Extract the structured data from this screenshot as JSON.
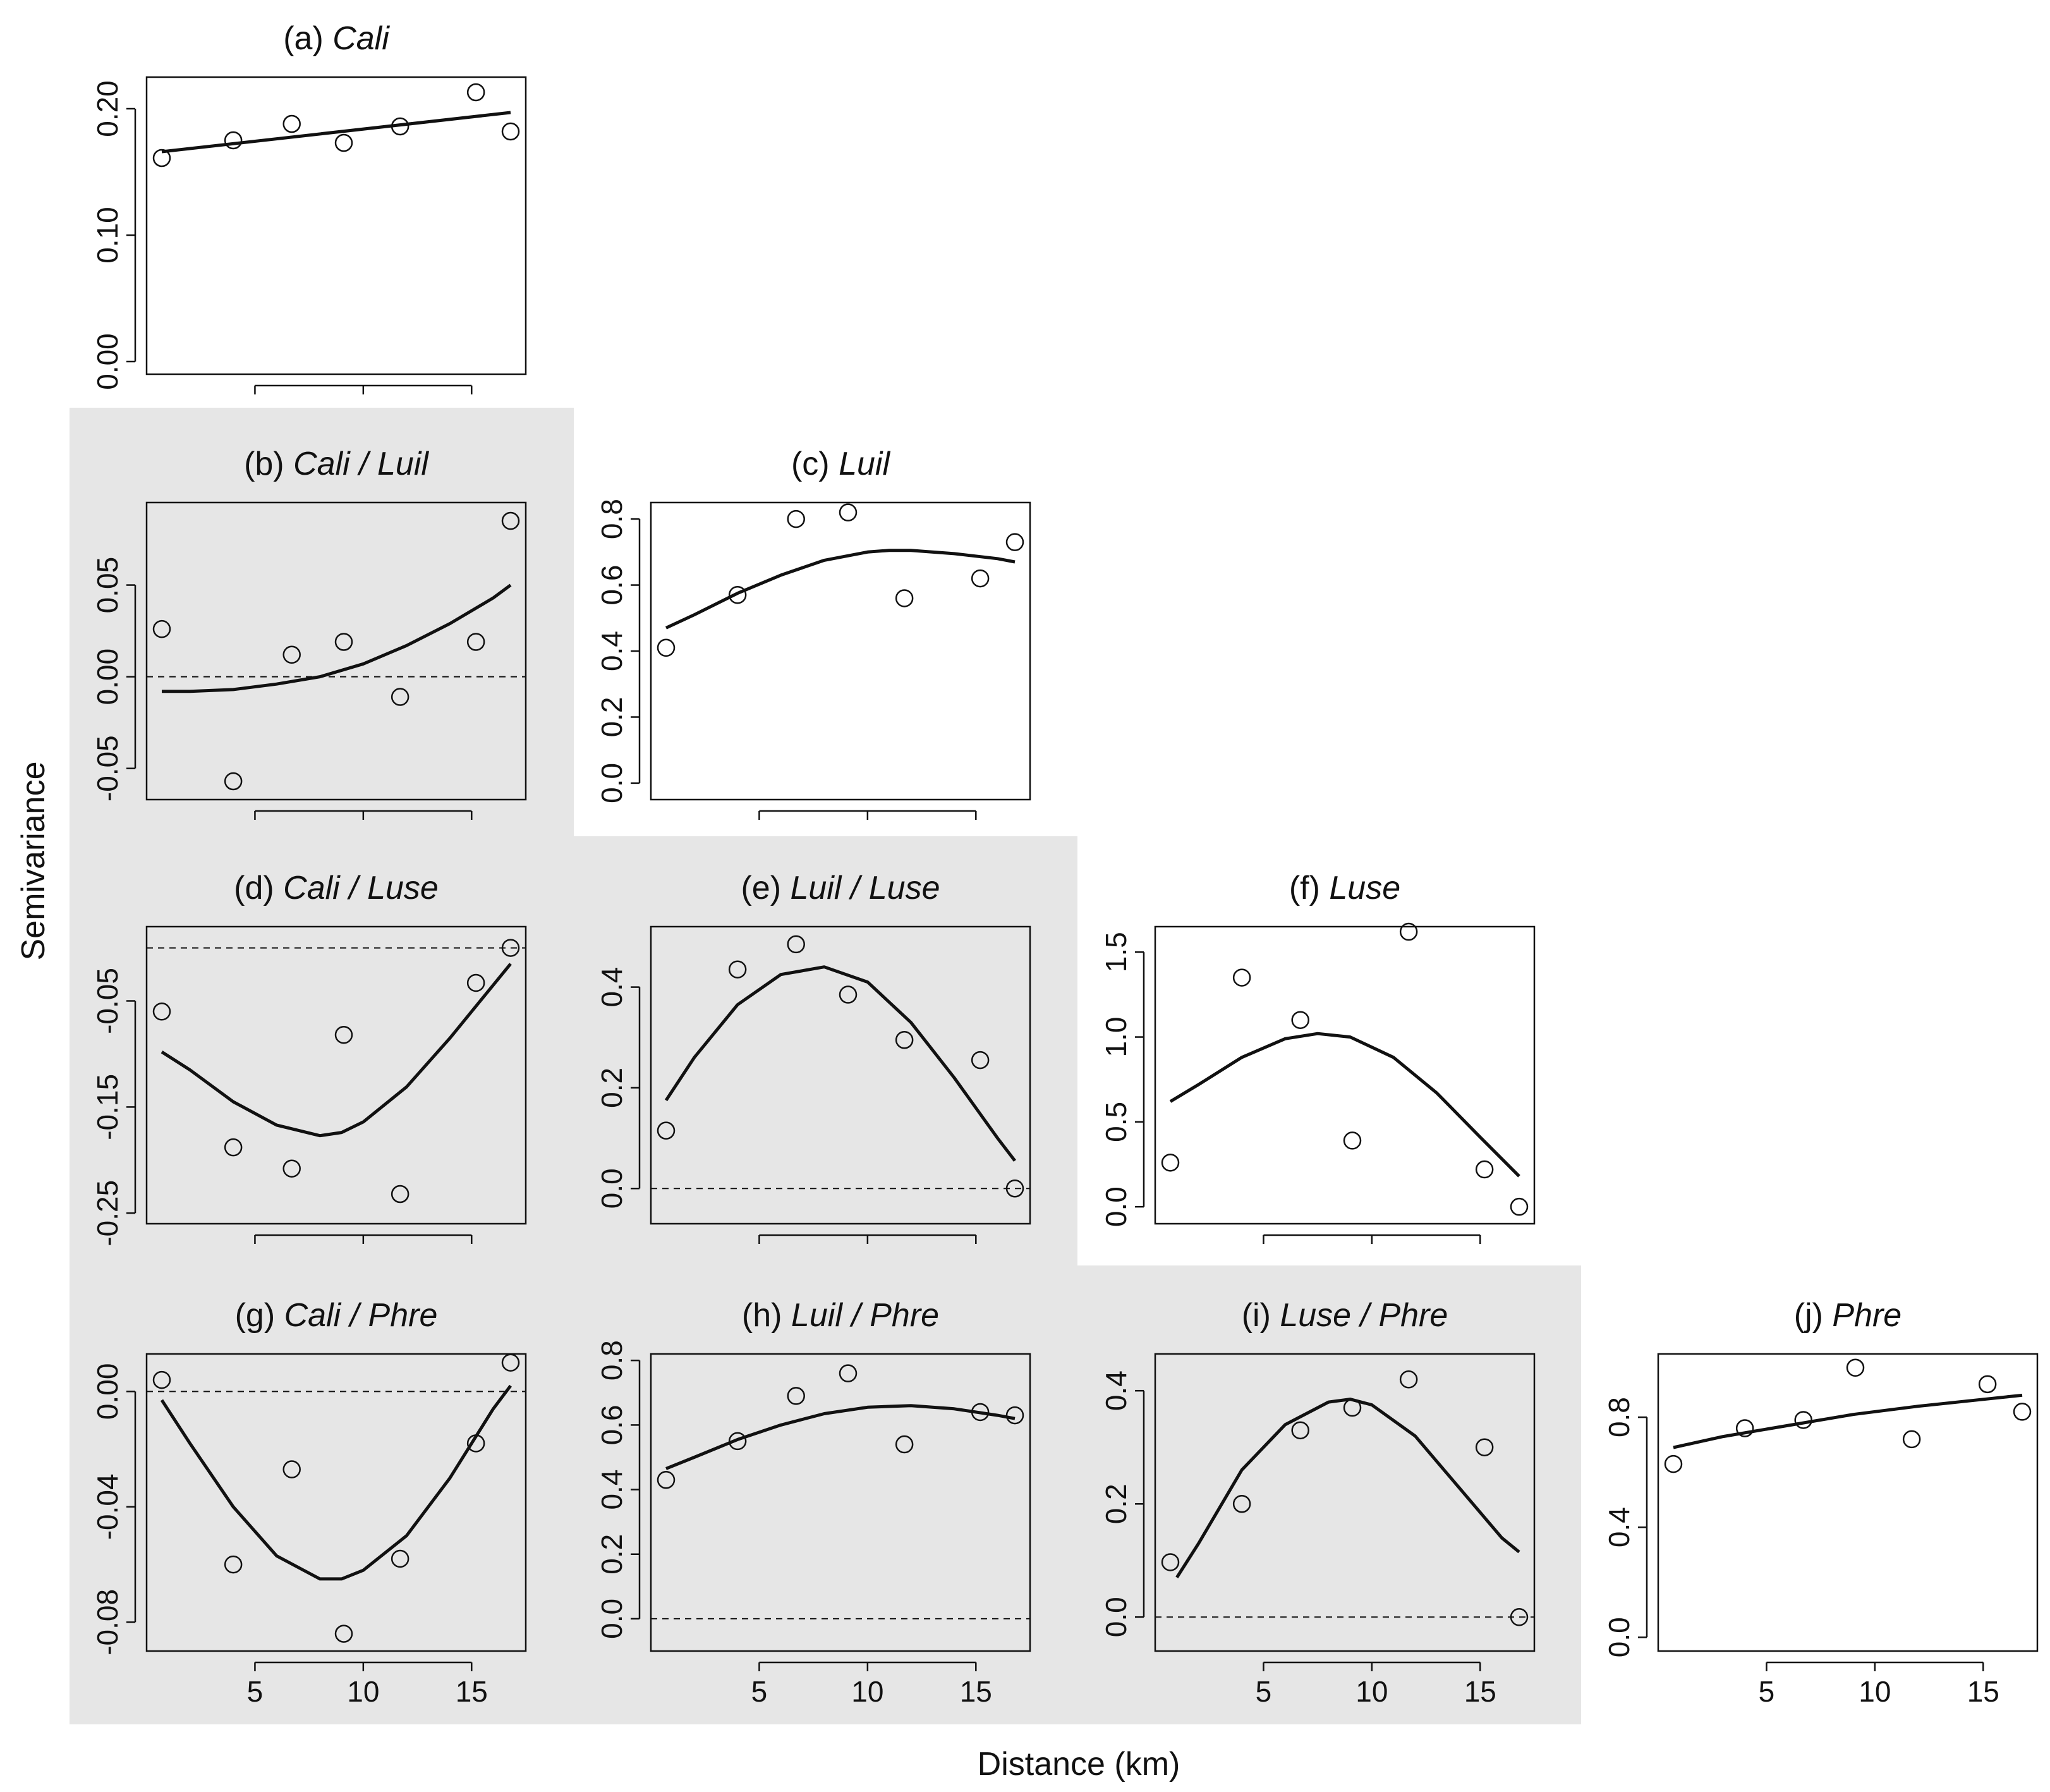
{
  "figure": {
    "ylabel": "Semivariance",
    "xlabel": "Distance (km)",
    "colors": {
      "shade": "#e6e6e6",
      "ink": "#111111"
    }
  },
  "chart_data": [
    {
      "id": "a",
      "type": "scatter",
      "title_prefix": "(a) ",
      "title_italic": "Cali",
      "shaded": false,
      "row": 0,
      "col": 0,
      "x": [
        0.7,
        4.0,
        6.7,
        9.1,
        11.7,
        15.2,
        16.8
      ],
      "y": [
        0.161,
        0.175,
        0.188,
        0.173,
        0.186,
        0.213,
        0.182
      ],
      "fit": [
        [
          0.7,
          0.166
        ],
        [
          16.8,
          0.197
        ]
      ],
      "xlim": [
        0,
        17.5
      ],
      "ylim": [
        -0.01,
        0.225
      ],
      "yticks": [
        "0.00",
        "0.10",
        "0.20"
      ],
      "ytick_values": [
        0.0,
        0.1,
        0.2
      ],
      "xticks": [
        "5",
        "10",
        "15"
      ],
      "xtick_values": [
        5,
        10,
        15
      ],
      "show_xticklabels": false,
      "zero_line": false
    },
    {
      "id": "b",
      "type": "scatter",
      "title_prefix": "(b) ",
      "title_italic": "Cali / Luil",
      "shaded": true,
      "row": 1,
      "col": 0,
      "x": [
        0.7,
        4.0,
        6.7,
        9.1,
        11.7,
        15.2,
        16.8
      ],
      "y": [
        0.026,
        -0.057,
        0.012,
        0.019,
        -0.011,
        0.019,
        0.085
      ],
      "fit": [
        [
          0.7,
          -0.008
        ],
        [
          2,
          -0.008
        ],
        [
          4,
          -0.007
        ],
        [
          6,
          -0.004
        ],
        [
          8,
          0.0
        ],
        [
          10,
          0.007
        ],
        [
          12,
          0.017
        ],
        [
          14,
          0.029
        ],
        [
          16,
          0.043
        ],
        [
          16.8,
          0.05
        ]
      ],
      "xlim": [
        0,
        17.5
      ],
      "ylim": [
        -0.067,
        0.095
      ],
      "yticks": [
        "-0.05",
        "0.00",
        "0.05"
      ],
      "ytick_values": [
        -0.05,
        0.0,
        0.05
      ],
      "xticks": [
        "5",
        "10",
        "15"
      ],
      "xtick_values": [
        5,
        10,
        15
      ],
      "show_xticklabels": false,
      "zero_line": true
    },
    {
      "id": "c",
      "type": "scatter",
      "title_prefix": "(c) ",
      "title_italic": "Luil",
      "shaded": false,
      "row": 1,
      "col": 1,
      "x": [
        0.7,
        4.0,
        6.7,
        9.1,
        11.7,
        15.2,
        16.8
      ],
      "y": [
        0.41,
        0.57,
        0.8,
        0.82,
        0.56,
        0.62,
        0.73
      ],
      "fit": [
        [
          0.7,
          0.47
        ],
        [
          2,
          0.51
        ],
        [
          4,
          0.575
        ],
        [
          6,
          0.63
        ],
        [
          8,
          0.675
        ],
        [
          10,
          0.7
        ],
        [
          11,
          0.705
        ],
        [
          12,
          0.705
        ],
        [
          14,
          0.695
        ],
        [
          16,
          0.68
        ],
        [
          16.8,
          0.67
        ]
      ],
      "xlim": [
        0,
        17.5
      ],
      "ylim": [
        -0.05,
        0.85
      ],
      "yticks": [
        "0.0",
        "0.2",
        "0.4",
        "0.6",
        "0.8"
      ],
      "ytick_values": [
        0.0,
        0.2,
        0.4,
        0.6,
        0.8
      ],
      "xticks": [
        "5",
        "10",
        "15"
      ],
      "xtick_values": [
        5,
        10,
        15
      ],
      "show_xticklabels": false,
      "zero_line": false
    },
    {
      "id": "d",
      "type": "scatter",
      "title_prefix": "(d) ",
      "title_italic": "Cali / Luse",
      "shaded": true,
      "row": 2,
      "col": 0,
      "x": [
        0.7,
        4.0,
        6.7,
        9.1,
        11.7,
        15.2,
        16.8
      ],
      "y": [
        -0.06,
        -0.188,
        -0.208,
        -0.082,
        -0.232,
        -0.033,
        0.0
      ],
      "fit": [
        [
          0.7,
          -0.098
        ],
        [
          2,
          -0.115
        ],
        [
          4,
          -0.145
        ],
        [
          6,
          -0.167
        ],
        [
          8,
          -0.177
        ],
        [
          9,
          -0.174
        ],
        [
          10,
          -0.164
        ],
        [
          12,
          -0.131
        ],
        [
          14,
          -0.085
        ],
        [
          16,
          -0.035
        ],
        [
          16.8,
          -0.015
        ]
      ],
      "xlim": [
        0,
        17.5
      ],
      "ylim": [
        -0.26,
        0.02
      ],
      "yticks": [
        "-0.25",
        "-0.15",
        "-0.05"
      ],
      "ytick_values": [
        -0.25,
        -0.15,
        -0.05
      ],
      "xticks": [
        "5",
        "10",
        "15"
      ],
      "xtick_values": [
        5,
        10,
        15
      ],
      "show_xticklabels": false,
      "zero_line": true
    },
    {
      "id": "e",
      "type": "scatter",
      "title_prefix": "(e) ",
      "title_italic": "Luil / Luse",
      "shaded": true,
      "row": 2,
      "col": 1,
      "x": [
        0.7,
        4.0,
        6.7,
        9.1,
        11.7,
        15.2,
        16.8
      ],
      "y": [
        0.115,
        0.435,
        0.485,
        0.385,
        0.295,
        0.255,
        0.0
      ],
      "fit": [
        [
          0.7,
          0.175
        ],
        [
          2,
          0.26
        ],
        [
          4,
          0.365
        ],
        [
          6,
          0.425
        ],
        [
          8,
          0.44
        ],
        [
          10,
          0.41
        ],
        [
          12,
          0.33
        ],
        [
          14,
          0.22
        ],
        [
          16,
          0.1
        ],
        [
          16.8,
          0.055
        ]
      ],
      "xlim": [
        0,
        17.5
      ],
      "ylim": [
        -0.07,
        0.52
      ],
      "yticks": [
        "0.0",
        "0.2",
        "0.4"
      ],
      "ytick_values": [
        0.0,
        0.2,
        0.4
      ],
      "xticks": [
        "5",
        "10",
        "15"
      ],
      "xtick_values": [
        5,
        10,
        15
      ],
      "show_xticklabels": false,
      "zero_line": true
    },
    {
      "id": "f",
      "type": "scatter",
      "title_prefix": "(f) ",
      "title_italic": "Luse",
      "shaded": false,
      "row": 2,
      "col": 2,
      "x": [
        0.7,
        4.0,
        6.7,
        9.1,
        11.7,
        15.2,
        16.8
      ],
      "y": [
        0.26,
        1.35,
        1.1,
        0.39,
        1.62,
        0.22,
        0.0
      ],
      "fit": [
        [
          0.7,
          0.62
        ],
        [
          2,
          0.72
        ],
        [
          4,
          0.88
        ],
        [
          6,
          0.99
        ],
        [
          7.5,
          1.02
        ],
        [
          9,
          1.0
        ],
        [
          11,
          0.88
        ],
        [
          13,
          0.67
        ],
        [
          15,
          0.41
        ],
        [
          16.8,
          0.18
        ]
      ],
      "xlim": [
        0,
        17.5
      ],
      "ylim": [
        -0.1,
        1.65
      ],
      "yticks": [
        "0.0",
        "0.5",
        "1.0",
        "1.5"
      ],
      "ytick_values": [
        0.0,
        0.5,
        1.0,
        1.5
      ],
      "xticks": [
        "5",
        "10",
        "15"
      ],
      "xtick_values": [
        5,
        10,
        15
      ],
      "show_xticklabels": false,
      "zero_line": false
    },
    {
      "id": "g",
      "type": "scatter",
      "title_prefix": "(g) ",
      "title_italic": "Cali / Phre",
      "shaded": true,
      "row": 3,
      "col": 0,
      "x": [
        0.7,
        4.0,
        6.7,
        9.1,
        11.7,
        15.2,
        16.8
      ],
      "y": [
        0.004,
        -0.06,
        -0.027,
        -0.084,
        -0.058,
        -0.018,
        0.01
      ],
      "fit": [
        [
          0.7,
          -0.003
        ],
        [
          2,
          -0.018
        ],
        [
          4,
          -0.04
        ],
        [
          6,
          -0.057
        ],
        [
          8,
          -0.065
        ],
        [
          9,
          -0.065
        ],
        [
          10,
          -0.062
        ],
        [
          12,
          -0.05
        ],
        [
          14,
          -0.03
        ],
        [
          16,
          -0.006
        ],
        [
          16.8,
          0.002
        ]
      ],
      "xlim": [
        0,
        17.5
      ],
      "ylim": [
        -0.09,
        0.013
      ],
      "yticks": [
        "-0.08",
        "-0.04",
        "0.00"
      ],
      "ytick_values": [
        -0.08,
        -0.04,
        0.0
      ],
      "xticks": [
        "5",
        "10",
        "15"
      ],
      "xtick_values": [
        5,
        10,
        15
      ],
      "show_xticklabels": true,
      "zero_line": true
    },
    {
      "id": "h",
      "type": "scatter",
      "title_prefix": "(h) ",
      "title_italic": "Luil / Phre",
      "shaded": true,
      "row": 3,
      "col": 1,
      "x": [
        0.7,
        4.0,
        6.7,
        9.1,
        11.7,
        15.2,
        16.8
      ],
      "y": [
        0.43,
        0.55,
        0.69,
        0.76,
        0.54,
        0.64,
        0.63
      ],
      "fit": [
        [
          0.7,
          0.465
        ],
        [
          2,
          0.5
        ],
        [
          4,
          0.555
        ],
        [
          6,
          0.6
        ],
        [
          8,
          0.635
        ],
        [
          10,
          0.655
        ],
        [
          12,
          0.66
        ],
        [
          14,
          0.65
        ],
        [
          16,
          0.63
        ],
        [
          16.8,
          0.62
        ]
      ],
      "xlim": [
        0,
        17.5
      ],
      "ylim": [
        -0.1,
        0.82
      ],
      "yticks": [
        "0.0",
        "0.2",
        "0.4",
        "0.6",
        "0.8"
      ],
      "ytick_values": [
        0.0,
        0.2,
        0.4,
        0.6,
        0.8
      ],
      "xticks": [
        "5",
        "10",
        "15"
      ],
      "xtick_values": [
        5,
        10,
        15
      ],
      "show_xticklabels": true,
      "zero_line": true
    },
    {
      "id": "i",
      "type": "scatter",
      "title_prefix": "(i) ",
      "title_italic": "Luse / Phre",
      "shaded": true,
      "row": 3,
      "col": 2,
      "x": [
        0.7,
        4.0,
        6.7,
        9.1,
        11.7,
        15.2,
        16.8
      ],
      "y": [
        0.097,
        0.2,
        0.33,
        0.37,
        0.42,
        0.3,
        0.0
      ],
      "fit": [
        [
          1.0,
          0.07
        ],
        [
          2,
          0.13
        ],
        [
          4,
          0.26
        ],
        [
          6,
          0.34
        ],
        [
          8,
          0.38
        ],
        [
          9,
          0.385
        ],
        [
          10,
          0.375
        ],
        [
          12,
          0.32
        ],
        [
          14,
          0.23
        ],
        [
          16,
          0.14
        ],
        [
          16.8,
          0.115
        ]
      ],
      "xlim": [
        0,
        17.5
      ],
      "ylim": [
        -0.06,
        0.465
      ],
      "yticks": [
        "0.0",
        "0.2",
        "0.4"
      ],
      "ytick_values": [
        0.0,
        0.2,
        0.4
      ],
      "xticks": [
        "5",
        "10",
        "15"
      ],
      "xtick_values": [
        5,
        10,
        15
      ],
      "show_xticklabels": true,
      "zero_line": true
    },
    {
      "id": "j",
      "type": "scatter",
      "title_prefix": "(j) ",
      "title_italic": "Phre",
      "shaded": false,
      "row": 3,
      "col": 3,
      "x": [
        0.7,
        4.0,
        6.7,
        9.1,
        11.7,
        15.2,
        16.8
      ],
      "y": [
        0.63,
        0.76,
        0.79,
        0.98,
        0.72,
        0.92,
        0.82
      ],
      "fit": [
        [
          0.7,
          0.69
        ],
        [
          3,
          0.73
        ],
        [
          6,
          0.77
        ],
        [
          9,
          0.81
        ],
        [
          12,
          0.84
        ],
        [
          15,
          0.865
        ],
        [
          16.8,
          0.88
        ]
      ],
      "xlim": [
        0,
        17.5
      ],
      "ylim": [
        -0.05,
        1.03
      ],
      "yticks": [
        "0.0",
        "0.4",
        "0.8"
      ],
      "ytick_values": [
        0.0,
        0.4,
        0.8
      ],
      "xticks": [
        "5",
        "10",
        "15"
      ],
      "xtick_values": [
        5,
        10,
        15
      ],
      "show_xticklabels": true,
      "zero_line": false
    }
  ]
}
